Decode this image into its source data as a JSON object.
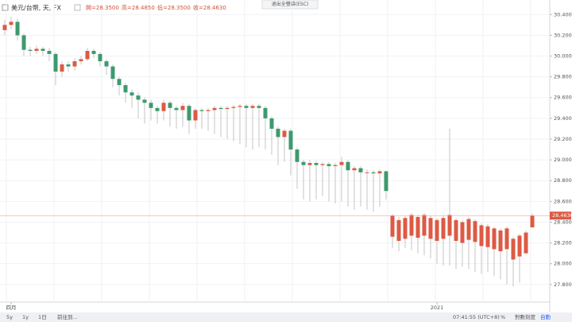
{
  "chart_data": {
    "type": "candlestick",
    "header": {
      "symbol": "美元/台幣, 天, FX",
      "ohlc": [
        "開=28.3500",
        "高=28.4850",
        "低=28.3500",
        "收=28.4630"
      ]
    },
    "top_button": "退出全螢幕(ESC)",
    "toolbar": {
      "left": [
        "5y",
        "1y",
        "1日",
        "前往到..."
      ],
      "right": [
        "07:41:55 (UTC+8)",
        "%",
        "對數刻度",
        "自動"
      ]
    },
    "categories": [
      null,
      "四月",
      null,
      null,
      null,
      null,
      null,
      null,
      null,
      null,
      null,
      null,
      null,
      null,
      null,
      null,
      null,
      null,
      null,
      null,
      null,
      null,
      null,
      null,
      null,
      null,
      null,
      null,
      null,
      null,
      null,
      null,
      null,
      null,
      null,
      null,
      null,
      null,
      null,
      null,
      null,
      null,
      null,
      null,
      null,
      null,
      null,
      null,
      null,
      null,
      null,
      null,
      null,
      null,
      null,
      null,
      null,
      null,
      null,
      null,
      null,
      null,
      null,
      null,
      null,
      null,
      null,
      null,
      "2021",
      null,
      null,
      null,
      null,
      null,
      null,
      null,
      null,
      null,
      null,
      null,
      null,
      null,
      null,
      null
    ],
    "open": [
      30.25,
      30.3,
      30.33,
      30.2,
      30.06,
      30.05,
      30.07,
      30.05,
      30.02,
      29.85,
      29.92,
      29.9,
      29.95,
      29.97,
      30.05,
      30.02,
      29.95,
      29.9,
      29.78,
      29.72,
      29.65,
      29.62,
      29.58,
      29.55,
      29.5,
      29.47,
      29.55,
      29.5,
      29.48,
      29.52,
      29.38,
      29.48,
      29.47,
      29.48,
      29.5,
      29.49,
      29.5,
      29.51,
      29.52,
      29.5,
      29.52,
      29.5,
      29.4,
      29.3,
      29.22,
      29.28,
      29.1,
      28.98,
      28.95,
      28.97,
      28.95,
      28.96,
      28.94,
      28.95,
      28.98,
      28.9,
      28.92,
      28.88,
      28.88,
      28.87,
      28.89,
      28.26,
      28.22,
      28.24,
      28.27,
      28.25,
      28.27,
      28.24,
      28.22,
      28.24,
      28.27,
      28.22,
      28.2,
      28.23,
      28.21,
      28.17,
      28.16,
      28.14,
      28.12,
      28.14,
      28.04,
      28.07,
      28.1,
      28.35
    ],
    "high": [
      30.35,
      30.38,
      30.36,
      30.22,
      30.09,
      30.1,
      30.09,
      30.08,
      30.04,
      29.95,
      29.95,
      29.98,
      30.0,
      30.08,
      30.07,
      30.04,
      29.97,
      29.92,
      29.8,
      29.74,
      29.68,
      29.65,
      29.6,
      29.58,
      29.52,
      29.58,
      29.57,
      29.52,
      29.55,
      29.54,
      29.5,
      29.5,
      29.5,
      29.52,
      29.52,
      29.52,
      29.53,
      29.54,
      29.54,
      29.54,
      29.54,
      29.52,
      29.42,
      29.32,
      29.3,
      29.3,
      29.12,
      29.0,
      29.0,
      28.99,
      28.98,
      28.98,
      28.97,
      29.03,
      29.0,
      28.94,
      28.94,
      28.91,
      28.9,
      28.91,
      28.9,
      28.48,
      28.45,
      28.46,
      28.49,
      28.47,
      28.49,
      28.46,
      28.44,
      28.46,
      29.3,
      28.44,
      28.42,
      28.45,
      28.43,
      28.39,
      28.38,
      28.36,
      28.34,
      28.36,
      28.26,
      28.29,
      28.32,
      28.485
    ],
    "low": [
      30.2,
      30.26,
      30.15,
      30.0,
      30.0,
      30.02,
      30.0,
      29.95,
      29.72,
      29.8,
      29.85,
      29.86,
      29.92,
      29.95,
      29.98,
      29.9,
      29.82,
      29.7,
      29.62,
      29.55,
      29.5,
      29.4,
      29.35,
      29.38,
      29.35,
      29.38,
      29.32,
      29.3,
      29.32,
      29.25,
      29.3,
      29.3,
      29.28,
      29.25,
      29.22,
      29.2,
      29.18,
      29.15,
      29.12,
      29.1,
      29.12,
      29.1,
      29.05,
      28.95,
      28.98,
      28.85,
      28.72,
      28.62,
      28.6,
      28.62,
      28.65,
      28.6,
      28.58,
      28.6,
      28.55,
      28.52,
      28.55,
      28.52,
      28.5,
      28.55,
      28.62,
      28.15,
      28.12,
      28.15,
      28.13,
      28.1,
      28.08,
      28.05,
      28.0,
      27.98,
      27.98,
      27.95,
      27.97,
      27.95,
      27.92,
      27.9,
      27.92,
      27.88,
      27.85,
      27.8,
      27.78,
      27.82,
      28.1,
      28.35
    ],
    "close": [
      30.3,
      30.33,
      30.2,
      30.06,
      30.05,
      30.07,
      30.05,
      30.02,
      29.85,
      29.92,
      29.9,
      29.95,
      29.97,
      30.05,
      30.02,
      29.95,
      29.9,
      29.78,
      29.72,
      29.65,
      29.62,
      29.58,
      29.55,
      29.5,
      29.47,
      29.55,
      29.5,
      29.48,
      29.52,
      29.38,
      29.48,
      29.47,
      29.48,
      29.5,
      29.49,
      29.5,
      29.51,
      29.52,
      29.5,
      29.52,
      29.5,
      29.4,
      29.3,
      29.22,
      29.28,
      29.1,
      28.98,
      28.95,
      28.97,
      28.95,
      28.96,
      28.94,
      28.95,
      28.98,
      28.9,
      28.92,
      28.88,
      28.88,
      28.87,
      28.89,
      28.7,
      28.46,
      28.42,
      28.44,
      28.47,
      28.45,
      28.47,
      28.44,
      28.42,
      28.44,
      28.47,
      28.42,
      28.4,
      28.43,
      28.41,
      28.37,
      28.36,
      28.34,
      28.32,
      28.34,
      28.24,
      28.27,
      28.3,
      28.463
    ],
    "last_label": "28.4630",
    "up_color": "#dd5a44",
    "down_color": "#3d9a6e",
    "wick_color": "#b8b8b8",
    "ylim": [
      27.63,
      30.54
    ],
    "yticks": [
      {
        "value": 27.8,
        "label": "27.8000"
      },
      {
        "value": 28.0,
        "label": "28.0000"
      },
      {
        "value": 28.2,
        "label": "28.2000"
      },
      {
        "value": 28.4,
        "label": "28.4000"
      },
      {
        "value": 28.6,
        "label": "28.6000"
      },
      {
        "value": 28.8,
        "label": "28.8000"
      },
      {
        "value": 29.0,
        "label": "29.0000"
      },
      {
        "value": 29.2,
        "label": "29.2000"
      },
      {
        "value": 29.4,
        "label": "29.4000"
      },
      {
        "value": 29.6,
        "label": "29.6000"
      },
      {
        "value": 29.8,
        "label": "29.8000"
      },
      {
        "value": 30.0,
        "label": "30.0000"
      },
      {
        "value": 30.2,
        "label": "30.2000"
      },
      {
        "value": 30.4,
        "label": "30.4000"
      }
    ],
    "grid": true
  }
}
